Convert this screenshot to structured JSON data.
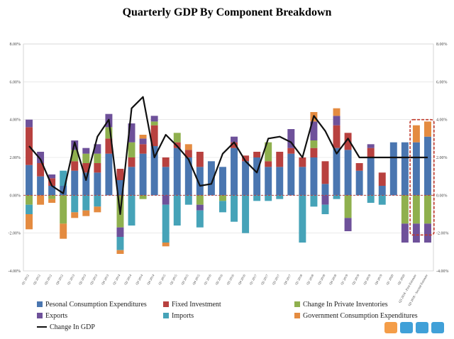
{
  "chart_data": {
    "type": "bar",
    "subtype": "stacked-with-line",
    "title": "Quarterly GDP By Component Breakdown",
    "ylim": [
      -4,
      8
    ],
    "yticks": [
      "-4.00%",
      "-2.00%",
      "0.00%",
      "2.00%",
      "4.00%",
      "6.00%",
      "8.00%"
    ],
    "ytick_values": [
      -4,
      -2,
      0,
      2,
      4,
      6,
      8
    ],
    "grid": true,
    "legend_position": "bottom",
    "categories": [
      "Q1 2012",
      "Q2 2012",
      "Q3 2012",
      "Q4 2012",
      "Q1 2013",
      "Q2 2013",
      "Q3 2013",
      "Q4 2013",
      "Q1 2014",
      "Q2 2014",
      "Q3 2014",
      "Q4 2014",
      "Q1 2015",
      "Q2 2015",
      "Q3 2015",
      "Q4 2015",
      "Q1 2016",
      "Q2 2016",
      "Q3 2016",
      "Q4 2016",
      "Q1 2017",
      "Q2 2017",
      "Q3 2017",
      "Q4 2017",
      "Q1 2018",
      "Q2 2018",
      "Q3 2018",
      "Q4 2018",
      "Q1 2019",
      "Q2 2019",
      "Q3 2019",
      "Q4 2019",
      "Q1 2020",
      "Q2 2020",
      "Q3 2018 - First Estimate",
      "Q3 2018 - Second Estimate"
    ],
    "series": [
      {
        "name": "Pesonal Consumption Expenditures",
        "color": "#4a76b0",
        "values": [
          1.6,
          1.0,
          0.5,
          0.5,
          1.3,
          1.2,
          1.2,
          2.2,
          0.8,
          1.5,
          2.2,
          2.6,
          1.5,
          2.5,
          2.0,
          1.5,
          1.8,
          1.5,
          2.5,
          1.8,
          2.0,
          1.5,
          1.5,
          2.2,
          1.5,
          2.0,
          0.6,
          2.5,
          2.4,
          1.3,
          2.0,
          0.5,
          2.8,
          2.8,
          2.8,
          3.1
        ]
      },
      {
        "name": "Fixed Investment",
        "color": "#b8413f",
        "values": [
          2.0,
          0.7,
          0.4,
          0.0,
          0.5,
          0.5,
          0.5,
          0.8,
          0.6,
          0.5,
          0.5,
          1.1,
          0.5,
          0.3,
          0.4,
          0.8,
          0.0,
          0.0,
          0.3,
          0.3,
          0.3,
          0.3,
          0.8,
          0.3,
          0.5,
          0.5,
          1.2,
          1.2,
          0.9,
          0.4,
          0.5,
          0.7,
          0.0,
          0.0,
          0.0,
          0.0
        ]
      },
      {
        "name": "Change In Private Inventories",
        "color": "#8fb04e",
        "values": [
          -0.5,
          0.0,
          -0.2,
          -1.5,
          0.6,
          0.5,
          0.5,
          0.6,
          -1.7,
          0.8,
          -0.2,
          0.2,
          0.0,
          0.5,
          0.0,
          -0.5,
          0.0,
          -0.3,
          0.0,
          0.0,
          0.0,
          1.0,
          0.0,
          0.0,
          0.0,
          0.4,
          0.0,
          0.0,
          -1.2,
          0.0,
          0.0,
          0.0,
          0.0,
          -1.5,
          -1.5,
          -1.5
        ]
      },
      {
        "name": "Exports",
        "color": "#6e519a",
        "values": [
          0.4,
          0.6,
          0.2,
          0.0,
          0.5,
          0.3,
          0.5,
          0.7,
          -0.5,
          1.0,
          0.3,
          0.3,
          -0.5,
          0.0,
          0.0,
          -0.3,
          0.0,
          0.0,
          0.3,
          0.0,
          0.0,
          0.0,
          0.0,
          1.0,
          0.0,
          1.0,
          -0.5,
          0.5,
          -0.7,
          0.0,
          0.2,
          0.0,
          0.0,
          -1.0,
          -1.0,
          -1.0
        ]
      },
      {
        "name": "Imports",
        "color": "#46a3b8",
        "values": [
          -0.5,
          0.0,
          0.0,
          0.8,
          -0.9,
          -0.8,
          -0.6,
          0.0,
          -0.7,
          -1.6,
          0.0,
          0.0,
          -2.0,
          -1.6,
          -0.5,
          -0.9,
          0.0,
          -0.6,
          -1.4,
          -2.0,
          -0.3,
          -0.3,
          -0.2,
          0.0,
          -2.5,
          -0.6,
          -0.5,
          -0.2,
          0.0,
          0.0,
          -0.4,
          -0.5,
          0.0,
          0.0,
          0.0,
          0.0
        ]
      },
      {
        "name": "Government Consumption Expenditures",
        "color": "#e48b40",
        "values": [
          -0.8,
          -0.5,
          -0.2,
          -0.8,
          -0.3,
          -0.3,
          -0.3,
          0.0,
          -0.2,
          0.0,
          0.2,
          0.0,
          -0.2,
          0.0,
          0.3,
          0.0,
          0.0,
          0.0,
          0.0,
          0.0,
          0.0,
          0.0,
          0.0,
          0.0,
          0.0,
          0.5,
          0.0,
          0.4,
          0.0,
          0.0,
          0.0,
          0.0,
          0.0,
          0.0,
          0.9,
          0.8
        ]
      }
    ],
    "line_series": {
      "name": "Change In GDP",
      "color": "#111111",
      "values": [
        2.6,
        1.9,
        0.5,
        0.1,
        2.8,
        0.8,
        3.1,
        4.0,
        -1.0,
        4.6,
        5.2,
        2.0,
        3.2,
        2.6,
        1.9,
        0.5,
        0.6,
        2.2,
        2.8,
        1.8,
        1.2,
        3.0,
        3.1,
        2.8,
        2.0,
        4.2,
        3.4,
        2.2,
        3.0,
        2.0,
        2.0,
        2.0,
        2.0,
        2.0,
        2.0,
        2.0
      ]
    },
    "highlight": {
      "from_index": 34,
      "to_index": 35,
      "color": "#c0392b",
      "style": "dashed"
    }
  },
  "legend": {
    "items": [
      {
        "label": "Pesonal Consumption Expenditures",
        "color": "#4a76b0",
        "kind": "box"
      },
      {
        "label": "Fixed Investment",
        "color": "#b8413f",
        "kind": "box"
      },
      {
        "label": "Change In Private Inventories",
        "color": "#8fb04e",
        "kind": "box"
      },
      {
        "label": "Exports",
        "color": "#6e519a",
        "kind": "box"
      },
      {
        "label": "Imports",
        "color": "#46a3b8",
        "kind": "box"
      },
      {
        "label": "Government Consumption Expenditures",
        "color": "#e48b40",
        "kind": "box"
      },
      {
        "label": "Change In GDP",
        "color": "#111111",
        "kind": "line"
      }
    ]
  }
}
